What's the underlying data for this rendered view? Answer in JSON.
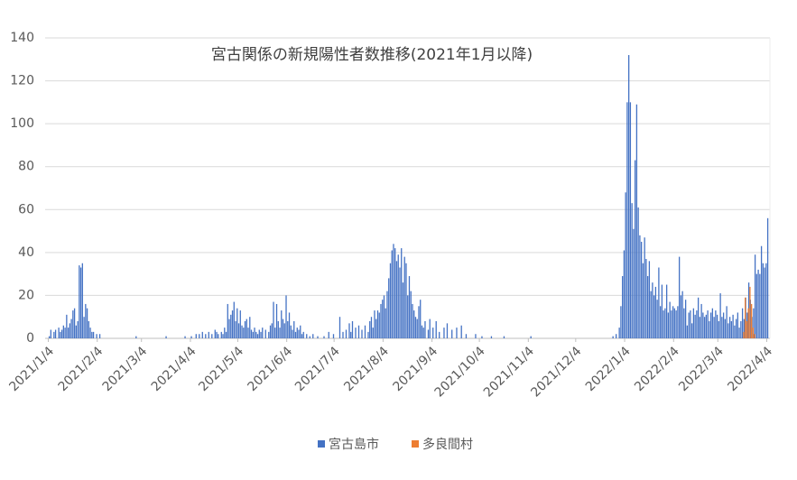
{
  "chart_data": {
    "type": "bar",
    "title": "宮古関係の新規陽性者数推移(2021年1月以降)",
    "xlim": [
      "2021/1/2",
      "2022/4/6"
    ],
    "xticks": [
      "2021/1/4",
      "2021/2/4",
      "2021/3/4",
      "2021/4/4",
      "2021/5/4",
      "2021/6/4",
      "2021/7/4",
      "2021/8/4",
      "2021/9/4",
      "2021/10/4",
      "2021/11/4",
      "2021/12/4",
      "2022/1/4",
      "2022/2/4",
      "2022/3/4",
      "2022/4/4"
    ],
    "ylim": [
      0,
      140
    ],
    "yticks": [
      0,
      20,
      40,
      60,
      80,
      100,
      120,
      140
    ],
    "grid": true,
    "series": [
      {
        "name": "宮古島市",
        "color": "#4472c4",
        "x": [
          "2021/1/5",
          "2021/1/6",
          "2021/1/8",
          "2021/1/9",
          "2021/1/11",
          "2021/1/12",
          "2021/1/13",
          "2021/1/14",
          "2021/1/15",
          "2021/1/16",
          "2021/1/17",
          "2021/1/18",
          "2021/1/19",
          "2021/1/20",
          "2021/1/21",
          "2021/1/22",
          "2021/1/23",
          "2021/1/24",
          "2021/1/25",
          "2021/1/26",
          "2021/1/27",
          "2021/1/28",
          "2021/1/29",
          "2021/1/30",
          "2021/1/31",
          "2021/2/1",
          "2021/2/2",
          "2021/2/4",
          "2021/2/6",
          "2021/3/1",
          "2021/3/20",
          "2021/4/1",
          "2021/4/5",
          "2021/4/8",
          "2021/4/10",
          "2021/4/12",
          "2021/4/14",
          "2021/4/16",
          "2021/4/18",
          "2021/4/20",
          "2021/4/21",
          "2021/4/22",
          "2021/4/24",
          "2021/4/25",
          "2021/4/26",
          "2021/4/27",
          "2021/4/28",
          "2021/4/29",
          "2021/4/30",
          "2021/5/1",
          "2021/5/2",
          "2021/5/3",
          "2021/5/4",
          "2021/5/5",
          "2021/5/6",
          "2021/5/7",
          "2021/5/8",
          "2021/5/9",
          "2021/5/10",
          "2021/5/11",
          "2021/5/12",
          "2021/5/13",
          "2021/5/14",
          "2021/5/15",
          "2021/5/16",
          "2021/5/17",
          "2021/5/18",
          "2021/5/19",
          "2021/5/20",
          "2021/5/22",
          "2021/5/24",
          "2021/5/25",
          "2021/5/26",
          "2021/5/27",
          "2021/5/28",
          "2021/5/29",
          "2021/5/30",
          "2021/5/31",
          "2021/6/1",
          "2021/6/2",
          "2021/6/3",
          "2021/6/4",
          "2021/6/5",
          "2021/6/6",
          "2021/6/7",
          "2021/6/8",
          "2021/6/9",
          "2021/6/10",
          "2021/6/11",
          "2021/6/12",
          "2021/6/13",
          "2021/6/14",
          "2021/6/15",
          "2021/6/17",
          "2021/6/19",
          "2021/6/21",
          "2021/6/24",
          "2021/6/28",
          "2021/7/1",
          "2021/7/4",
          "2021/7/8",
          "2021/7/10",
          "2021/7/12",
          "2021/7/14",
          "2021/7/15",
          "2021/7/16",
          "2021/7/18",
          "2021/7/20",
          "2021/7/22",
          "2021/7/24",
          "2021/7/26",
          "2021/7/27",
          "2021/7/28",
          "2021/7/29",
          "2021/7/30",
          "2021/7/31",
          "2021/8/1",
          "2021/8/2",
          "2021/8/3",
          "2021/8/4",
          "2021/8/5",
          "2021/8/6",
          "2021/8/7",
          "2021/8/8",
          "2021/8/9",
          "2021/8/10",
          "2021/8/11",
          "2021/8/12",
          "2021/8/13",
          "2021/8/14",
          "2021/8/15",
          "2021/8/16",
          "2021/8/17",
          "2021/8/18",
          "2021/8/19",
          "2021/8/20",
          "2021/8/21",
          "2021/8/22",
          "2021/8/23",
          "2021/8/24",
          "2021/8/25",
          "2021/8/26",
          "2021/8/27",
          "2021/8/28",
          "2021/8/29",
          "2021/8/30",
          "2021/8/31",
          "2021/9/2",
          "2021/9/3",
          "2021/9/5",
          "2021/9/7",
          "2021/9/9",
          "2021/9/12",
          "2021/9/14",
          "2021/9/17",
          "2021/9/20",
          "2021/9/23",
          "2021/9/26",
          "2021/10/2",
          "2021/10/6",
          "2021/10/12",
          "2021/10/20",
          "2021/11/6",
          "2021/12/28",
          "2021/12/30",
          "2022/1/1",
          "2022/1/2",
          "2022/1/3",
          "2022/1/4",
          "2022/1/5",
          "2022/1/6",
          "2022/1/7",
          "2022/1/8",
          "2022/1/9",
          "2022/1/10",
          "2022/1/11",
          "2022/1/12",
          "2022/1/13",
          "2022/1/14",
          "2022/1/15",
          "2022/1/16",
          "2022/1/17",
          "2022/1/18",
          "2022/1/19",
          "2022/1/20",
          "2022/1/21",
          "2022/1/22",
          "2022/1/23",
          "2022/1/24",
          "2022/1/25",
          "2022/1/26",
          "2022/1/27",
          "2022/1/28",
          "2022/1/29",
          "2022/1/30",
          "2022/1/31",
          "2022/2/1",
          "2022/2/2",
          "2022/2/3",
          "2022/2/4",
          "2022/2/5",
          "2022/2/6",
          "2022/2/7",
          "2022/2/8",
          "2022/2/9",
          "2022/2/10",
          "2022/2/11",
          "2022/2/12",
          "2022/2/13",
          "2022/2/14",
          "2022/2/15",
          "2022/2/16",
          "2022/2/17",
          "2022/2/18",
          "2022/2/19",
          "2022/2/20",
          "2022/2/21",
          "2022/2/22",
          "2022/2/23",
          "2022/2/24",
          "2022/2/25",
          "2022/2/26",
          "2022/2/27",
          "2022/2/28",
          "2022/3/1",
          "2022/3/2",
          "2022/3/3",
          "2022/3/4",
          "2022/3/5",
          "2022/3/6",
          "2022/3/7",
          "2022/3/8",
          "2022/3/9",
          "2022/3/10",
          "2022/3/11",
          "2022/3/12",
          "2022/3/13",
          "2022/3/14",
          "2022/3/15",
          "2022/3/16",
          "2022/3/17",
          "2022/3/18",
          "2022/3/19",
          "2022/3/20",
          "2022/3/21",
          "2022/3/22",
          "2022/3/23",
          "2022/3/24",
          "2022/3/25",
          "2022/3/26",
          "2022/3/27",
          "2022/3/28",
          "2022/3/29",
          "2022/3/30",
          "2022/3/31",
          "2022/4/1",
          "2022/4/2",
          "2022/4/3",
          "2022/4/4",
          "2022/4/5"
        ],
        "values": [
          1,
          4,
          3,
          4,
          5,
          3,
          4,
          6,
          5,
          11,
          5,
          7,
          9,
          13,
          14,
          6,
          8,
          34,
          33,
          35,
          10,
          16,
          14,
          8,
          5,
          3,
          3,
          2,
          2,
          1,
          1,
          1,
          1,
          2,
          2,
          3,
          2,
          3,
          2,
          4,
          3,
          2,
          3,
          2,
          5,
          3,
          16,
          9,
          11,
          13,
          17,
          8,
          14,
          7,
          13,
          6,
          5,
          8,
          9,
          5,
          10,
          4,
          3,
          5,
          3,
          2,
          4,
          3,
          5,
          4,
          3,
          6,
          7,
          17,
          5,
          16,
          8,
          5,
          13,
          9,
          7,
          20,
          8,
          12,
          6,
          4,
          8,
          3,
          5,
          4,
          6,
          2,
          3,
          2,
          1,
          2,
          1,
          1,
          3,
          2,
          10,
          3,
          4,
          7,
          3,
          8,
          5,
          6,
          4,
          6,
          3,
          8,
          10,
          5,
          13,
          9,
          13,
          12,
          16,
          18,
          20,
          14,
          22,
          28,
          35,
          41,
          44,
          42,
          36,
          39,
          33,
          42,
          26,
          38,
          35,
          20,
          29,
          22,
          16,
          13,
          10,
          9,
          15,
          18,
          6,
          5,
          8,
          4,
          9,
          5,
          8,
          3,
          5,
          7,
          4,
          5,
          6,
          2,
          2,
          1,
          1,
          1,
          1,
          1,
          2,
          5,
          15,
          29,
          41,
          68,
          110,
          132,
          110,
          63,
          51,
          83,
          109,
          61,
          48,
          45,
          35,
          47,
          37,
          29,
          36,
          22,
          26,
          20,
          24,
          18,
          33,
          15,
          25,
          13,
          14,
          25,
          12,
          17,
          13,
          15,
          14,
          13,
          15,
          38,
          20,
          22,
          14,
          18,
          6,
          12,
          13,
          7,
          14,
          11,
          13,
          19,
          10,
          16,
          12,
          10,
          11,
          13,
          8,
          12,
          14,
          10,
          13,
          11,
          8,
          21,
          10,
          12,
          9,
          15,
          7,
          10,
          8,
          11,
          6,
          9,
          12,
          5,
          8,
          14,
          9,
          19,
          12,
          26,
          18,
          10,
          14,
          39,
          30,
          32,
          30,
          43,
          35,
          33,
          35,
          56
        ]
      },
      {
        "name": "多良間村",
        "color": "#ed7d31",
        "x": [
          "2022/3/20",
          "2022/3/21",
          "2022/3/22",
          "2022/3/23",
          "2022/3/24",
          "2022/3/25",
          "2022/3/26",
          "2022/3/27"
        ],
        "values": [
          3,
          19,
          8,
          14,
          24,
          16,
          5,
          2
        ]
      }
    ]
  }
}
